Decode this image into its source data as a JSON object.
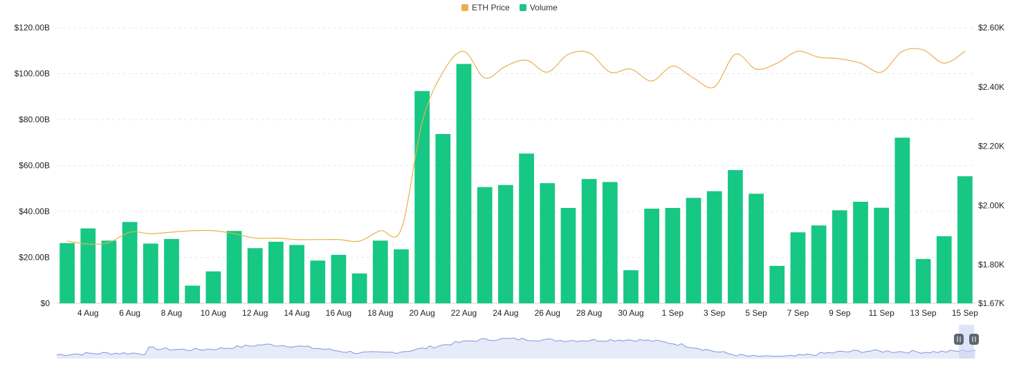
{
  "legend": {
    "price_label": "ETH Price",
    "volume_label": "Volume"
  },
  "colors": {
    "price": "#e8b04a",
    "volume": "#17c784",
    "grid": "#e8e8e8",
    "navigator_line": "#7f95d8",
    "navigator_fill": "#e6ebfa"
  },
  "chart_data": {
    "type": "bar",
    "categories": [
      "3 Aug",
      "4 Aug",
      "5 Aug",
      "6 Aug",
      "7 Aug",
      "8 Aug",
      "9 Aug",
      "10 Aug",
      "11 Aug",
      "12 Aug",
      "13 Aug",
      "14 Aug",
      "15 Aug",
      "16 Aug",
      "17 Aug",
      "18 Aug",
      "19 Aug",
      "20 Aug",
      "21 Aug",
      "22 Aug",
      "23 Aug",
      "24 Aug",
      "25 Aug",
      "26 Aug",
      "27 Aug",
      "28 Aug",
      "29 Aug",
      "30 Aug",
      "31 Aug",
      "1 Sep",
      "2 Sep",
      "3 Sep",
      "4 Sep",
      "5 Sep",
      "6 Sep",
      "7 Sep",
      "8 Sep",
      "9 Sep",
      "10 Sep",
      "11 Sep",
      "12 Sep",
      "13 Sep",
      "14 Sep",
      "15 Sep"
    ],
    "x_tick_labels": [
      "4 Aug",
      "6 Aug",
      "8 Aug",
      "10 Aug",
      "12 Aug",
      "14 Aug",
      "16 Aug",
      "18 Aug",
      "20 Aug",
      "22 Aug",
      "24 Aug",
      "26 Aug",
      "28 Aug",
      "30 Aug",
      "1 Sep",
      "3 Sep",
      "5 Sep",
      "7 Sep",
      "9 Sep",
      "11 Sep",
      "13 Sep",
      "15 Sep"
    ],
    "series": [
      {
        "name": "Volume",
        "axis": "left",
        "type": "bar",
        "values": [
          26.2,
          32.6,
          27.3,
          35.4,
          26,
          28,
          7.7,
          13.9,
          31.5,
          24,
          26.8,
          25.4,
          18.6,
          21.1,
          13,
          27.3,
          23.5,
          92.4,
          73.7,
          104.2,
          50.6,
          51.5,
          65.2,
          52.3,
          41.5,
          54.1,
          52.8,
          14.4,
          41.2,
          41.5,
          45.9,
          48.8,
          58,
          47.7,
          16.3,
          30.9,
          33.9,
          40.5,
          44.2,
          41.6,
          72.1,
          19.3,
          29.2,
          55.3
        ]
      },
      {
        "name": "ETH Price",
        "axis": "right",
        "type": "line",
        "values": [
          1880,
          1870,
          1875,
          1910,
          1905,
          1910,
          1915,
          1915,
          1905,
          1890,
          1890,
          1885,
          1885,
          1885,
          1880,
          1915,
          1920,
          2280,
          2450,
          2520,
          2430,
          2470,
          2490,
          2450,
          2510,
          2515,
          2450,
          2460,
          2420,
          2470,
          2430,
          2400,
          2510,
          2460,
          2480,
          2520,
          2500,
          2495,
          2480,
          2450,
          2520,
          2525,
          2480,
          2520
        ]
      }
    ],
    "left_axis": {
      "ticks": [
        "$0",
        "$20.00B",
        "$40.00B",
        "$60.00B",
        "$80.00B",
        "$100.00B",
        "$120.00B"
      ],
      "ylim": [
        0,
        120
      ]
    },
    "right_axis": {
      "ticks": [
        "$1.67K",
        "$1.80K",
        "$2.00K",
        "$2.20K",
        "$2.40K",
        "$2.60K"
      ],
      "ylim": [
        1670,
        2600
      ]
    },
    "grid": true,
    "legend_position": "top-center"
  }
}
